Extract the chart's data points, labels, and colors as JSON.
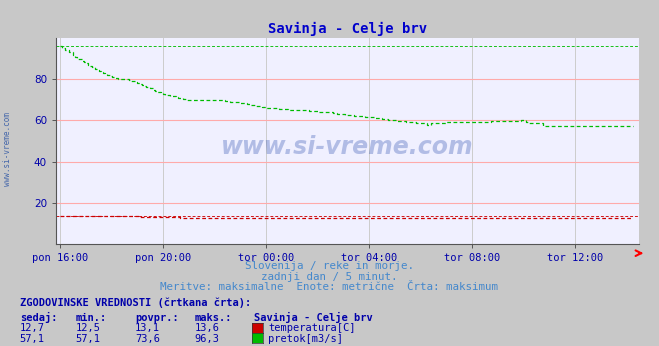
{
  "title": "Savinja - Celje brv",
  "title_color": "#0000cc",
  "title_fontsize": 10,
  "fig_bg_color": "#c8c8c8",
  "plot_bg_color": "#f0f0ff",
  "grid_color_h": "#ffaaaa",
  "grid_color_v": "#c8c8c8",
  "watermark": "www.si-vreme.com",
  "watermark_color": "#2244aa",
  "left_label": "www.si-vreme.com",
  "subtitle_lines": [
    "Slovenija / reke in morje.",
    "zadnji dan / 5 minut.",
    "Meritve: maksimalne  Enote: metrične  Črta: maksimum"
  ],
  "x_tick_labels": [
    "pon 16:00",
    "pon 20:00",
    "tor 00:00",
    "tor 04:00",
    "tor 08:00",
    "tor 12:00"
  ],
  "x_tick_positions": [
    0,
    48,
    96,
    144,
    192,
    240
  ],
  "ylim": [
    0,
    100
  ],
  "y_ticks": [
    20,
    40,
    60,
    80
  ],
  "temp_color": "#cc0000",
  "flow_color": "#00bb00",
  "temp_max_line": 13.6,
  "flow_max_line": 96.3,
  "temp_current": "12,7",
  "temp_min": "12,5",
  "temp_avg": "13,1",
  "temp_max": "13,6",
  "flow_current": "57,1",
  "flow_min": "57,1",
  "flow_avg": "73,6",
  "flow_max": "96,3",
  "legend_title": "Savinja - Celje brv",
  "legend_temp_label": "temperatura[C]",
  "legend_flow_label": "pretok[m3/s]",
  "table_header": "ZGODOVINSKE VREDNOSTI (črtkana črta):",
  "table_col_headers": [
    "sedaj:",
    "min.:",
    "povpr.:",
    "maks.:"
  ],
  "table_color": "#0000aa",
  "temp_series": [
    13.6,
    13.6,
    13.6,
    13.6,
    13.6,
    13.6,
    13.6,
    13.6,
    13.6,
    13.6,
    13.6,
    13.6,
    13.6,
    13.6,
    13.6,
    13.6,
    13.6,
    13.6,
    13.6,
    13.6,
    13.6,
    13.6,
    13.6,
    13.5,
    13.5,
    13.5,
    13.5,
    13.5,
    13.5,
    13.5,
    13.5,
    13.5,
    13.4,
    13.4,
    13.4,
    13.4,
    13.4,
    13.3,
    13.3,
    13.3,
    13.3,
    13.2,
    13.2,
    13.2,
    13.2,
    13.1,
    13.1,
    13.1,
    13.0,
    13.0,
    13.0,
    13.0,
    12.9,
    12.9,
    12.9,
    12.9,
    12.8,
    12.8,
    12.8,
    12.8,
    12.8,
    12.8,
    12.7,
    12.7,
    12.7,
    12.7,
    12.7,
    12.7,
    12.7,
    12.7,
    12.7,
    12.6,
    12.6,
    12.6,
    12.6,
    12.6,
    12.6,
    12.6,
    12.6,
    12.6,
    12.6,
    12.6,
    12.6,
    12.6,
    12.6,
    12.6,
    12.6,
    12.6,
    12.6,
    12.6,
    12.6,
    12.6,
    12.6,
    12.6,
    12.6,
    12.6,
    12.6,
    12.6,
    12.6,
    12.6,
    12.6,
    12.6,
    12.6,
    12.6,
    12.6,
    12.6,
    12.6,
    12.6,
    12.6,
    12.6,
    12.6,
    12.6,
    12.6,
    12.5,
    12.5,
    12.5,
    12.5,
    12.5,
    12.5,
    12.5,
    12.5,
    12.5,
    12.5,
    12.5,
    12.5,
    12.5,
    12.5,
    12.5,
    12.5,
    12.5,
    12.5,
    12.5,
    12.5,
    12.5,
    12.5,
    12.5,
    12.5,
    12.5,
    12.5,
    12.5,
    12.5,
    12.5,
    12.5,
    12.5,
    12.5,
    12.5,
    12.5,
    12.5,
    12.5,
    12.5,
    12.5,
    12.5,
    12.5,
    12.5,
    12.5,
    12.5,
    12.5,
    12.5,
    12.5,
    12.5,
    12.5,
    12.5,
    12.5,
    12.5,
    12.5,
    12.5,
    12.5,
    12.5,
    12.5,
    12.5,
    12.5,
    12.5,
    12.5,
    12.5,
    12.5,
    12.5,
    12.5,
    12.5,
    12.5,
    12.5,
    12.5,
    12.5,
    12.5,
    12.5,
    12.5,
    12.5,
    12.5,
    12.5,
    12.5,
    12.5,
    12.5,
    12.5,
    12.5,
    12.5,
    12.5,
    12.5,
    12.5,
    12.5,
    12.5,
    12.5,
    12.5,
    12.5,
    12.5,
    12.5,
    12.5,
    12.5,
    12.5,
    12.5,
    12.5,
    12.5,
    12.5,
    12.5,
    12.5,
    12.5,
    12.5,
    12.5,
    12.5,
    12.5,
    12.5,
    12.5,
    12.5,
    12.5,
    12.5,
    12.5,
    12.5,
    12.5,
    12.5,
    12.5,
    12.5,
    12.5,
    12.5,
    12.5,
    12.5,
    12.5,
    12.5,
    12.5,
    12.5,
    12.5,
    12.5,
    12.5,
    12.5,
    12.5,
    12.5,
    12.5,
    12.5,
    12.5,
    12.5,
    12.5,
    12.5,
    12.5,
    12.5,
    12.5,
    12.5,
    12.5,
    12.5,
    12.5,
    12.5,
    12.5,
    12.5,
    12.5,
    12.5,
    12.5,
    12.5,
    12.5,
    12.7,
    12.7,
    12.7,
    12.7
  ],
  "flow_series": [
    96.3,
    95.0,
    94.0,
    94.0,
    93.0,
    93.0,
    92.0,
    91.0,
    90.0,
    90.0,
    89.0,
    88.5,
    88.0,
    87.0,
    86.5,
    86.0,
    85.0,
    84.5,
    84.0,
    83.5,
    83.0,
    82.5,
    82.0,
    81.5,
    81.0,
    80.5,
    80.5,
    80.0,
    80.0,
    80.0,
    80.0,
    80.0,
    79.5,
    79.0,
    79.0,
    78.5,
    78.0,
    77.5,
    77.0,
    76.5,
    76.0,
    76.0,
    75.5,
    75.0,
    74.5,
    74.0,
    74.0,
    73.5,
    73.0,
    72.5,
    72.5,
    72.0,
    72.0,
    72.0,
    71.5,
    71.0,
    71.0,
    70.5,
    70.5,
    70.0,
    70.0,
    70.0,
    70.0,
    70.0,
    70.0,
    70.0,
    70.0,
    70.0,
    70.0,
    70.0,
    70.0,
    70.0,
    70.0,
    70.0,
    70.0,
    70.0,
    70.0,
    69.5,
    69.5,
    69.0,
    69.0,
    69.0,
    69.0,
    69.0,
    68.5,
    68.5,
    68.5,
    68.0,
    68.0,
    67.5,
    67.5,
    67.0,
    67.0,
    67.0,
    66.5,
    66.5,
    66.0,
    66.0,
    66.0,
    66.0,
    66.0,
    66.0,
    65.5,
    65.5,
    65.5,
    65.5,
    65.0,
    65.0,
    65.0,
    65.0,
    65.0,
    65.0,
    65.0,
    65.0,
    65.0,
    65.0,
    64.5,
    64.5,
    64.5,
    64.5,
    64.0,
    64.0,
    64.0,
    64.0,
    64.0,
    64.0,
    64.0,
    63.5,
    63.5,
    63.0,
    63.0,
    63.0,
    63.0,
    62.5,
    62.5,
    62.5,
    62.5,
    62.0,
    62.0,
    62.0,
    62.0,
    62.0,
    61.5,
    61.5,
    61.5,
    61.5,
    61.5,
    61.0,
    61.0,
    61.0,
    60.5,
    60.5,
    60.5,
    60.0,
    60.0,
    60.0,
    60.0,
    59.5,
    59.5,
    59.5,
    59.5,
    59.0,
    59.0,
    59.0,
    59.0,
    59.0,
    58.5,
    58.5,
    58.5,
    58.5,
    58.5,
    58.0,
    58.0,
    58.5,
    58.5,
    58.5,
    58.5,
    58.5,
    58.5,
    58.5,
    59.0,
    59.0,
    59.0,
    59.0,
    59.0,
    59.0,
    59.0,
    59.0,
    59.0,
    59.0,
    59.0,
    59.0,
    59.0,
    59.0,
    59.0,
    59.0,
    59.0,
    59.0,
    59.0,
    59.0,
    59.0,
    59.5,
    59.5,
    59.5,
    59.5,
    59.5,
    59.5,
    59.5,
    59.5,
    59.5,
    59.5,
    59.5,
    59.5,
    59.5,
    59.5,
    60.0,
    60.0,
    59.0,
    58.5,
    58.5,
    58.5,
    58.5,
    58.5,
    58.5,
    58.5,
    57.5,
    57.5,
    57.5,
    57.5,
    57.5,
    57.5,
    57.5,
    57.5,
    57.5,
    57.5,
    57.5,
    57.5,
    57.5,
    57.5,
    57.5,
    57.5,
    57.5,
    57.5,
    57.5,
    57.5,
    57.5,
    57.5,
    57.5,
    57.5,
    57.5,
    57.5,
    57.5,
    57.5,
    57.5,
    57.5,
    57.5,
    57.5,
    57.5,
    57.5,
    57.5,
    57.5,
    57.5,
    57.5,
    57.5,
    57.5,
    57.5,
    57.5,
    57.1
  ]
}
